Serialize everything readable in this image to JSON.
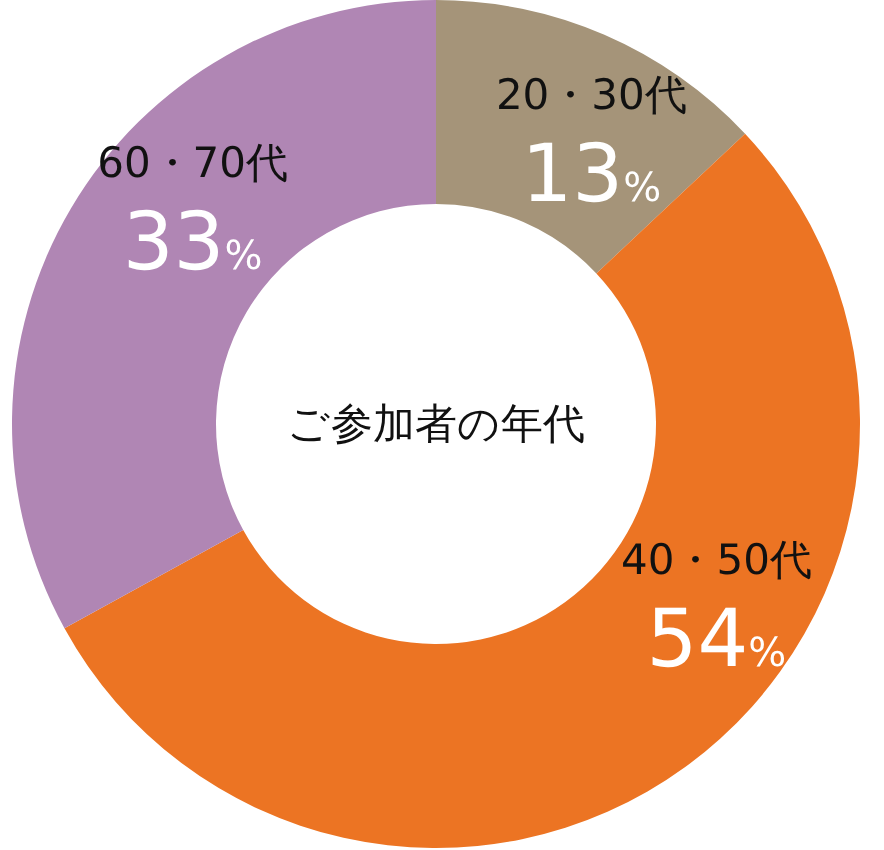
{
  "chart_data": {
    "type": "donut",
    "title": "ご参加者の年代",
    "categories": [
      "20・30代",
      "40・50代",
      "60・70代"
    ],
    "values": [
      13,
      54,
      33
    ],
    "colors": [
      "#a59479",
      "#ec7423",
      "#b086b4"
    ],
    "value_labels": [
      "13%",
      "54%",
      "33%"
    ]
  }
}
